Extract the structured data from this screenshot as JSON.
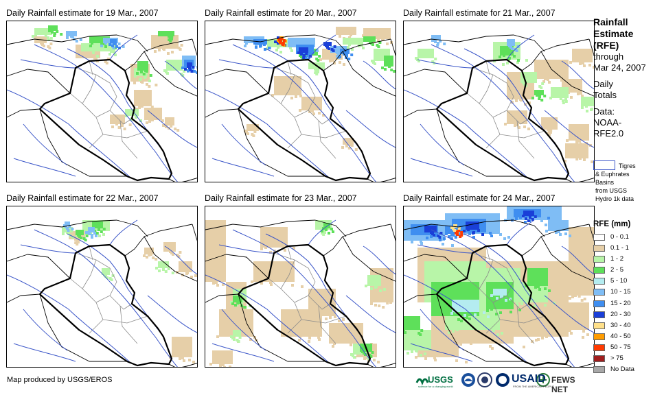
{
  "panels": [
    {
      "title": "Daily Rainfall estimate for 19 Mar., 2007",
      "key": "p19"
    },
    {
      "title": "Daily Rainfall estimate for 20 Mar., 2007",
      "key": "p20"
    },
    {
      "title": "Daily Rainfall estimate for 21 Mar., 2007",
      "key": "p21"
    },
    {
      "title": "Daily Rainfall estimate for 22 Mar., 2007",
      "key": "p22"
    },
    {
      "title": "Daily Rainfall estimate for 23 Mar., 2007",
      "key": "p23"
    },
    {
      "title": "Daily Rainfall estimate for 24 Mar., 2007",
      "key": "p24"
    }
  ],
  "sidebar": {
    "title_line1": "Rainfall",
    "title_line2": "Estimate",
    "title_line3": "(RFE)",
    "through": "through",
    "through_date": "Mar 24, 2007",
    "daily_line1": "Daily",
    "daily_line2": "Totals",
    "data_line1": "Data:",
    "data_line2": "NOAA-",
    "data_line3": "RFE2.0",
    "basin_line1": "Tigres",
    "basin_line2": "& Euphrates",
    "basin_line3": "Basins",
    "basin_line4": "from USGS",
    "basin_line5": "Hydro 1k data",
    "basin_color": "#3a55c8"
  },
  "legend": {
    "title": "RFE (mm)",
    "items": [
      {
        "label": "0 - 0.1",
        "color": "#ffffff"
      },
      {
        "label": "0.1 - 1",
        "color": "#e6cfa8"
      },
      {
        "label": "1 - 2",
        "color": "#b8f5a8"
      },
      {
        "label": "2 - 5",
        "color": "#5ee05a"
      },
      {
        "label": "5 - 10",
        "color": "#b4ecf0"
      },
      {
        "label": "10 - 15",
        "color": "#7fbdf5"
      },
      {
        "label": "15 - 20",
        "color": "#3f8ef0"
      },
      {
        "label": "20 - 30",
        "color": "#1a3fd8"
      },
      {
        "label": "30 - 40",
        "color": "#ffe08a"
      },
      {
        "label": "40 - 50",
        "color": "#ff9c00"
      },
      {
        "label": "50 - 75",
        "color": "#ff3a00"
      },
      {
        "label": "> 75",
        "color": "#a01e1e"
      },
      {
        "label": "No Data",
        "color": "#a8a8a8"
      }
    ]
  },
  "footer": {
    "credit": "Map produced by USGS/EROS"
  },
  "logos": {
    "usgs": "USGS",
    "usgs_tag": "science for a changing world",
    "usaid": "USAID",
    "usaid_tag": "FROM THE AMERICAN PEOPLE",
    "fews": "FEWS NET"
  },
  "colors": {
    "border": "#000000",
    "river": "#3a55c8",
    "province": "#8a8a8a"
  }
}
